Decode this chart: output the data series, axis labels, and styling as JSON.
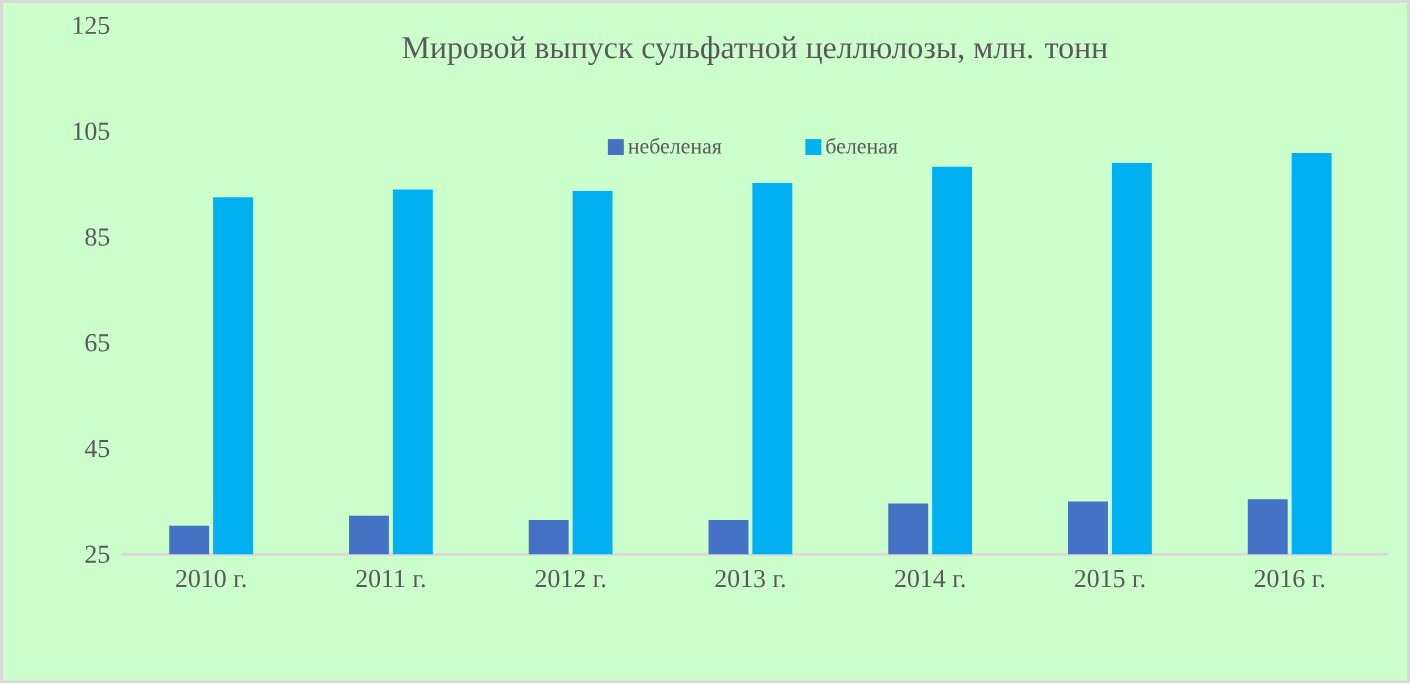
{
  "chart_data": {
    "type": "bar",
    "title": "Мировой выпуск сульфатной целлюлозы, млн. тонн",
    "categories": [
      "2010 г.",
      "2011 г.",
      "2012 г.",
      "2013 г.",
      "2014 г.",
      "2015 г.",
      "2016 г."
    ],
    "series": [
      {
        "name": "небеленая",
        "color": "#4472c4",
        "values": [
          30.4,
          32.3,
          31.5,
          31.5,
          34.6,
          35.0,
          35.4
        ]
      },
      {
        "name": "беленая",
        "color": "#00b0f0",
        "values": [
          92.5,
          94.0,
          93.7,
          95.2,
          98.3,
          99.0,
          100.9
        ]
      }
    ],
    "ylim": [
      25,
      125
    ],
    "yticks": [
      25,
      45,
      65,
      85,
      105,
      125
    ],
    "legend": "top"
  }
}
